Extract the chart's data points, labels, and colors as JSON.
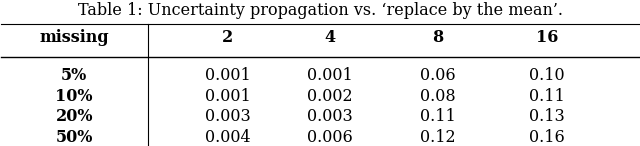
{
  "title": "Table 1: Uncertainty propagation vs. ‘replace by the mean’.",
  "col_headers": [
    "missing",
    "2",
    "4",
    "8",
    "16"
  ],
  "row_labels": [
    "5%",
    "10%",
    "20%",
    "50%"
  ],
  "table_data": [
    [
      "0.001",
      "0.001",
      "0.06",
      "0.10"
    ],
    [
      "0.001",
      "0.002",
      "0.08",
      "0.11"
    ],
    [
      "0.003",
      "0.003",
      "0.11",
      "0.13"
    ],
    [
      "0.004",
      "0.006",
      "0.12",
      "0.16"
    ]
  ],
  "bg_color": "#ffffff",
  "text_color": "#000000",
  "title_fontsize": 11.5,
  "header_fontsize": 11.5,
  "cell_fontsize": 11.5,
  "figsize": [
    6.4,
    1.46
  ]
}
